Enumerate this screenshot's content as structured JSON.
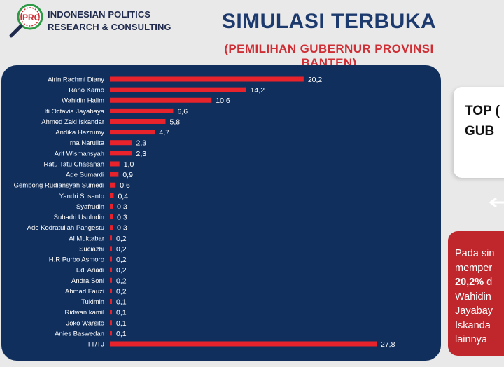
{
  "header": {
    "logo_badge": "IPRC",
    "logo_line1": "INDONESIAN POLITICS",
    "logo_line2": "RESEARCH & CONSULTING",
    "title": "SIMULASI TERBUKA",
    "subtitle": "(PEMILIHAN GUBERNUR PROVINSI BANTEN)"
  },
  "callout_top": {
    "text": "TOP (\nGUB"
  },
  "callout_red": {
    "line1": "Pada sin",
    "line2": "memper",
    "line3_bold": "20,2%",
    "line3_rest": " d",
    "line4": "Wahidin",
    "line5": "Jayabay",
    "line6": "Iskanda",
    "line7": "lainnya"
  },
  "colors": {
    "panel": "#102f5d",
    "bar": "#e8232b",
    "title": "#1d3a6e",
    "accent_red": "#cf2e35"
  },
  "chart_data": {
    "type": "bar",
    "orientation": "horizontal",
    "categories": [
      "Airin Rachmi Diany",
      "Rano Karno",
      "Wahidin Halim",
      "Iti Octavia Jayabaya",
      "Ahmed Zaki Iskandar",
      "Andika Hazrumy",
      "Irna Narulita",
      "Arif Wismansyah",
      "Ratu Tatu Chasanah",
      "Ade Sumardi",
      "Gembong Rudiansyah Sumedi",
      "Yandri Susanto",
      "Syafrudin",
      "Subadri Usuludin",
      "Ade Kodratullah Pangestu",
      "Al Muktabar",
      "Suciazhi",
      "H.R Purbo Asmoro",
      "Edi Ariadi",
      "Andra Soni",
      "Ahmad Fauzi",
      "Tukimin",
      "Ridwan kamil",
      "Joko Warsito",
      "Anies Baswedan",
      "TT/TJ"
    ],
    "values": [
      20.2,
      14.2,
      10.6,
      6.6,
      5.8,
      4.7,
      2.3,
      2.3,
      1.0,
      0.9,
      0.6,
      0.4,
      0.3,
      0.3,
      0.3,
      0.2,
      0.2,
      0.2,
      0.2,
      0.2,
      0.2,
      0.1,
      0.1,
      0.1,
      0.1,
      27.8
    ],
    "value_labels": [
      "20,2",
      "14,2",
      "10,6",
      "6,6",
      "5,8",
      "4,7",
      "2,3",
      "2,3",
      "1,0",
      "0,9",
      "0,6",
      "0,4",
      "0,3",
      "0,3",
      "0,3",
      "0,2",
      "0,2",
      "0,2",
      "0,2",
      "0,2",
      "0,2",
      "0,1",
      "0,1",
      "0,1",
      "0,1",
      "27,8"
    ],
    "xlim": [
      0,
      27.8
    ],
    "grid": false,
    "legend": "none"
  }
}
